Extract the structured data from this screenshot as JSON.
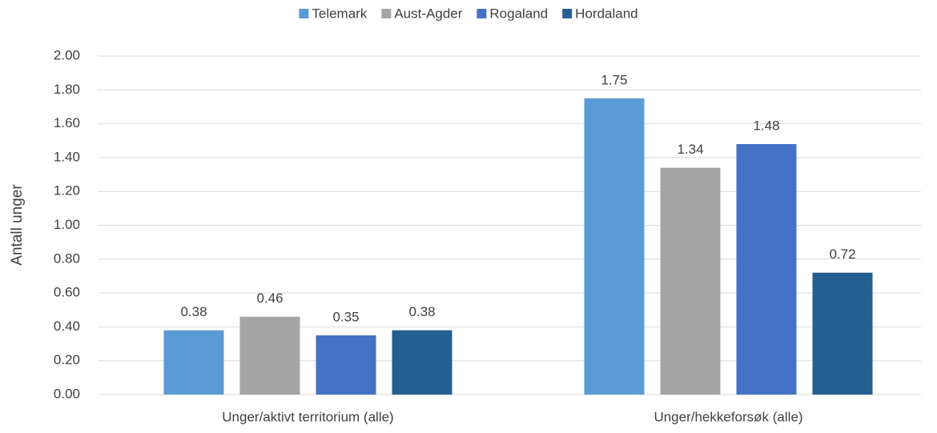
{
  "chart_data": {
    "type": "bar",
    "y_label": "Antall unger",
    "categories": [
      "Unger/aktivt territorium (alle)",
      "Unger/hekkeforsøk (alle)"
    ],
    "series": [
      {
        "name": "Telemark",
        "color": "#5b9bd5",
        "values": [
          0.38,
          1.75
        ]
      },
      {
        "name": "Aust-Agder",
        "color": "#a5a5a5",
        "values": [
          0.46,
          1.34
        ]
      },
      {
        "name": "Rogaland",
        "color": "#4472c4",
        "values": [
          0.35,
          1.48
        ]
      },
      {
        "name": "Hordaland",
        "color": "#255e91",
        "values": [
          0.38,
          0.72
        ]
      }
    ],
    "ylim": [
      0,
      2
    ],
    "yticks": [
      {
        "value": 0,
        "label": "0.00"
      },
      {
        "value": 0.2,
        "label": "0.20"
      },
      {
        "value": 0.4,
        "label": "0.40"
      },
      {
        "value": 0.6,
        "label": "0.60"
      },
      {
        "value": 0.8,
        "label": "0.80"
      },
      {
        "value": 1,
        "label": "1.00"
      },
      {
        "value": 1.2,
        "label": "1.20"
      },
      {
        "value": 1.4,
        "label": "1.40"
      },
      {
        "value": 1.6,
        "label": "1.60"
      },
      {
        "value": 1.8,
        "label": "1.80"
      },
      {
        "value": 2,
        "label": "2.00"
      }
    ],
    "grid": true,
    "legend": "top"
  }
}
